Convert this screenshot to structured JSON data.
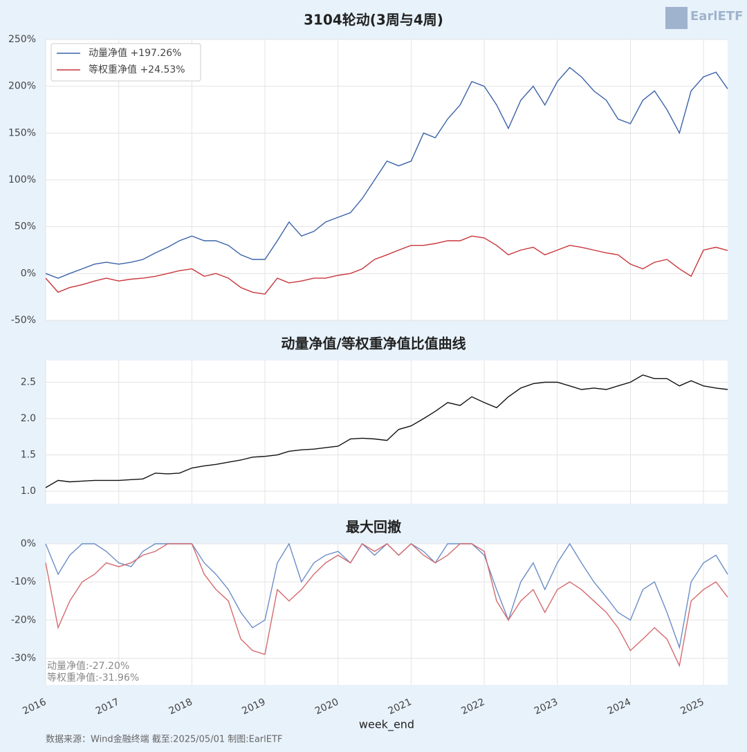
{
  "logo": "EarlETF",
  "footer": "数据来源：Wind金融终端 截至:2025/05/01 制图:EarlETF",
  "chart_data": [
    {
      "type": "line",
      "title": "3104轮动(3周与4周)",
      "x": [
        2016,
        2016.17,
        2016.33,
        2016.5,
        2016.67,
        2016.83,
        2017,
        2017.17,
        2017.33,
        2017.5,
        2017.67,
        2017.83,
        2018,
        2018.17,
        2018.33,
        2018.5,
        2018.67,
        2018.83,
        2019,
        2019.17,
        2019.33,
        2019.5,
        2019.67,
        2019.83,
        2020,
        2020.17,
        2020.33,
        2020.5,
        2020.67,
        2020.83,
        2021,
        2021.17,
        2021.33,
        2021.5,
        2021.67,
        2021.83,
        2022,
        2022.17,
        2022.33,
        2022.5,
        2022.67,
        2022.83,
        2023,
        2023.17,
        2023.33,
        2023.5,
        2023.67,
        2023.83,
        2024,
        2024.17,
        2024.33,
        2024.5,
        2024.67,
        2024.83,
        2025,
        2025.17,
        2025.33
      ],
      "xlim": [
        2016,
        2025.33
      ],
      "xticks": [
        2016,
        2017,
        2018,
        2019,
        2020,
        2021,
        2022,
        2023,
        2024,
        2025
      ],
      "ylim": [
        -50,
        250
      ],
      "yticks": [
        {
          "value": -50,
          "label": "-50%"
        },
        {
          "value": 0,
          "label": "0%"
        },
        {
          "value": 50,
          "label": "50%"
        },
        {
          "value": 100,
          "label": "100%"
        },
        {
          "value": 150,
          "label": "150%"
        },
        {
          "value": 200,
          "label": "200%"
        },
        {
          "value": 250,
          "label": "250%"
        }
      ],
      "grid": true,
      "legend": "upper-left",
      "series": [
        {
          "name": "动量净值  +197.26%",
          "color": "#3a62a8",
          "values": [
            0,
            -5,
            0,
            5,
            10,
            12,
            10,
            12,
            15,
            22,
            28,
            35,
            40,
            35,
            35,
            30,
            20,
            15,
            15,
            35,
            55,
            40,
            45,
            55,
            60,
            65,
            80,
            100,
            120,
            115,
            120,
            150,
            145,
            165,
            180,
            205,
            200,
            180,
            155,
            185,
            200,
            180,
            205,
            220,
            210,
            195,
            185,
            165,
            160,
            185,
            195,
            175,
            150,
            195,
            210,
            215,
            197.26
          ]
        },
        {
          "name": "等权重净值  +24.53%",
          "color": "#c8353a",
          "values": [
            -5,
            -20,
            -15,
            -12,
            -8,
            -5,
            -8,
            -6,
            -5,
            -3,
            0,
            3,
            5,
            -3,
            0,
            -5,
            -15,
            -20,
            -22,
            -5,
            -10,
            -8,
            -5,
            -5,
            -2,
            0,
            5,
            15,
            20,
            25,
            30,
            30,
            32,
            35,
            35,
            40,
            38,
            30,
            20,
            25,
            28,
            20,
            25,
            30,
            28,
            25,
            22,
            20,
            10,
            5,
            12,
            15,
            5,
            -3,
            25,
            28,
            24.53
          ]
        }
      ]
    },
    {
      "type": "line",
      "title": "动量净值/等权重净值比值曲线",
      "x": [
        2016,
        2016.17,
        2016.33,
        2016.5,
        2016.67,
        2016.83,
        2017,
        2017.17,
        2017.33,
        2017.5,
        2017.67,
        2017.83,
        2018,
        2018.17,
        2018.33,
        2018.5,
        2018.67,
        2018.83,
        2019,
        2019.17,
        2019.33,
        2019.5,
        2019.67,
        2019.83,
        2020,
        2020.17,
        2020.33,
        2020.5,
        2020.67,
        2020.83,
        2021,
        2021.17,
        2021.33,
        2021.5,
        2021.67,
        2021.83,
        2022,
        2022.17,
        2022.33,
        2022.5,
        2022.67,
        2022.83,
        2023,
        2023.17,
        2023.33,
        2023.5,
        2023.67,
        2023.83,
        2024,
        2024.17,
        2024.33,
        2024.5,
        2024.67,
        2024.83,
        2025,
        2025.17,
        2025.33
      ],
      "xlim": [
        2016,
        2025.33
      ],
      "xticks": [
        2016,
        2017,
        2018,
        2019,
        2020,
        2021,
        2022,
        2023,
        2024,
        2025
      ],
      "ylim": [
        0.83,
        2.8
      ],
      "yticks": [
        {
          "value": 1,
          "label": "1.0"
        },
        1.5,
        {
          "value": 2,
          "label": "2.0"
        },
        2.5
      ],
      "grid": true,
      "series": [
        {
          "color": "#111111",
          "values": [
            1.05,
            1.15,
            1.13,
            1.14,
            1.15,
            1.15,
            1.15,
            1.16,
            1.17,
            1.25,
            1.24,
            1.25,
            1.32,
            1.35,
            1.37,
            1.4,
            1.43,
            1.47,
            1.48,
            1.5,
            1.55,
            1.57,
            1.58,
            1.6,
            1.62,
            1.72,
            1.73,
            1.72,
            1.7,
            1.85,
            1.9,
            2.0,
            2.1,
            2.22,
            2.18,
            2.3,
            2.22,
            2.15,
            2.3,
            2.42,
            2.48,
            2.5,
            2.5,
            2.45,
            2.4,
            2.42,
            2.4,
            2.45,
            2.5,
            2.6,
            2.55,
            2.55,
            2.45,
            2.52,
            2.45,
            2.42,
            2.4
          ]
        }
      ]
    },
    {
      "type": "line",
      "title": "最大回撤",
      "xlabel": "week_end",
      "x": [
        2016,
        2016.17,
        2016.33,
        2016.5,
        2016.67,
        2016.83,
        2017,
        2017.17,
        2017.33,
        2017.5,
        2017.67,
        2017.83,
        2018,
        2018.17,
        2018.33,
        2018.5,
        2018.67,
        2018.83,
        2019,
        2019.17,
        2019.33,
        2019.5,
        2019.67,
        2019.83,
        2020,
        2020.17,
        2020.33,
        2020.5,
        2020.67,
        2020.83,
        2021,
        2021.17,
        2021.33,
        2021.5,
        2021.67,
        2021.83,
        2022,
        2022.17,
        2022.33,
        2022.5,
        2022.67,
        2022.83,
        2023,
        2023.17,
        2023.33,
        2023.5,
        2023.67,
        2023.83,
        2024,
        2024.17,
        2024.33,
        2024.5,
        2024.67,
        2024.83,
        2025,
        2025.17,
        2025.33
      ],
      "xlim": [
        2016,
        2025.33
      ],
      "xticks": [
        2016,
        2017,
        2018,
        2019,
        2020,
        2021,
        2022,
        2023,
        2024,
        2025
      ],
      "ylim": [
        -37,
        0
      ],
      "yticks": [
        {
          "value": -30,
          "label": "-30%"
        },
        {
          "value": -20,
          "label": "-20%"
        },
        {
          "value": -10,
          "label": "-10%"
        },
        {
          "value": 0,
          "label": "0%"
        }
      ],
      "grid": true,
      "annotations": [
        "动量净值:-27.20%",
        "等权重净值:-31.96%"
      ],
      "series": [
        {
          "color": "#6b8dc6",
          "values": [
            0,
            -8,
            -3,
            0,
            0,
            -2,
            -5,
            -6,
            -2,
            0,
            0,
            0,
            0,
            -5,
            -8,
            -12,
            -18,
            -22,
            -20,
            -5,
            0,
            -10,
            -5,
            -3,
            -2,
            -5,
            0,
            -3,
            0,
            -3,
            0,
            -2,
            -5,
            0,
            0,
            0,
            -3,
            -12,
            -20,
            -10,
            -5,
            -12,
            -5,
            0,
            -5,
            -10,
            -14,
            -18,
            -20,
            -12,
            -10,
            -18,
            -27.2,
            -10,
            -5,
            -3,
            -8
          ]
        },
        {
          "color": "#d46a6e",
          "values": [
            -5,
            -22,
            -15,
            -10,
            -8,
            -5,
            -6,
            -5,
            -3,
            -2,
            0,
            0,
            0,
            -8,
            -12,
            -15,
            -25,
            -28,
            -29,
            -12,
            -15,
            -12,
            -8,
            -5,
            -3,
            -5,
            0,
            -2,
            0,
            -3,
            0,
            -3,
            -5,
            -3,
            0,
            0,
            -2,
            -15,
            -20,
            -15,
            -12,
            -18,
            -12,
            -10,
            -12,
            -15,
            -18,
            -22,
            -28,
            -25,
            -22,
            -25,
            -31.96,
            -15,
            -12,
            -10,
            -14
          ]
        }
      ]
    }
  ]
}
